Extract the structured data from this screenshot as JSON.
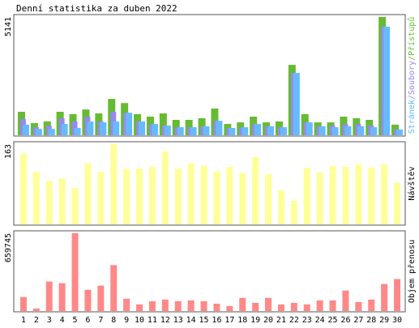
{
  "chart_data": [
    {
      "type": "bar",
      "title": "Denní statistika za duben 2022",
      "ylim": [
        0,
        5141
      ],
      "yticks": [
        5141
      ],
      "legend_separator": "/",
      "series": [
        {
          "name": "Stránek",
          "color": "#66bbff",
          "values": [
            460,
            280,
            280,
            490,
            320,
            600,
            560,
            600,
            980,
            600,
            490,
            420,
            350,
            350,
            390,
            630,
            320,
            350,
            490,
            390,
            350,
            2710,
            560,
            390,
            350,
            390,
            390,
            350,
            4720,
            250
          ]
        },
        {
          "name": "Soubory",
          "color": "#9988ee",
          "values": [
            700,
            350,
            420,
            740,
            600,
            810,
            600,
            1020,
            980,
            600,
            490,
            420,
            350,
            350,
            390,
            630,
            320,
            350,
            490,
            390,
            350,
            2710,
            560,
            390,
            420,
            490,
            490,
            420,
            4720,
            250
          ]
        },
        {
          "name": "Přístupů",
          "color": "#66bb33",
          "values": [
            1020,
            530,
            600,
            1020,
            920,
            1120,
            950,
            1580,
            1400,
            920,
            810,
            950,
            670,
            670,
            740,
            1160,
            490,
            560,
            810,
            560,
            600,
            3060,
            920,
            560,
            560,
            810,
            740,
            670,
            5141,
            460
          ]
        }
      ]
    },
    {
      "type": "bar",
      "y_label": "Návštěv",
      "label_color": "#cccc33",
      "color": "#ffff99",
      "ylim": [
        0,
        163
      ],
      "yticks": [
        163
      ],
      "values": [
        144,
        107,
        89,
        93,
        74,
        124,
        107,
        163,
        113,
        113,
        117,
        148,
        113,
        124,
        119,
        107,
        117,
        104,
        137,
        102,
        69,
        48,
        115,
        106,
        119,
        117,
        122,
        115,
        122,
        85
      ]
    },
    {
      "type": "bar",
      "y_label": "Objem přenosu",
      "label_color": "#ff7777",
      "color": "#ff8888",
      "ylim": [
        0,
        659745
      ],
      "yticks": [
        659745
      ],
      "values": [
        118000,
        21000,
        250000,
        236000,
        659745,
        180000,
        215000,
        389000,
        104000,
        56000,
        83000,
        97000,
        83000,
        90000,
        83000,
        62000,
        42000,
        111000,
        69000,
        111000,
        56000,
        69000,
        56000,
        90000,
        90000,
        174000,
        76000,
        97000,
        229000,
        271000
      ],
      "categories": [
        "1",
        "2",
        "3",
        "4",
        "5",
        "6",
        "7",
        "8",
        "9",
        "10",
        "11",
        "12",
        "13",
        "14",
        "15",
        "16",
        "17",
        "18",
        "19",
        "20",
        "21",
        "22",
        "23",
        "24",
        "25",
        "26",
        "27",
        "28",
        "29",
        "30"
      ],
      "category_colors": [
        "#000",
        "#66aa11",
        "#66aa11",
        "#000",
        "#000",
        "#000",
        "#000",
        "#000",
        "#66aa11",
        "#66aa11",
        "#000",
        "#000",
        "#000",
        "#000",
        "#000",
        "#66aa11",
        "#66aa11",
        "#000",
        "#000",
        "#000",
        "#000",
        "#000",
        "#66aa11",
        "#66aa11",
        "#000",
        "#000",
        "#000",
        "#000",
        "#000",
        "#66aa11"
      ]
    }
  ]
}
